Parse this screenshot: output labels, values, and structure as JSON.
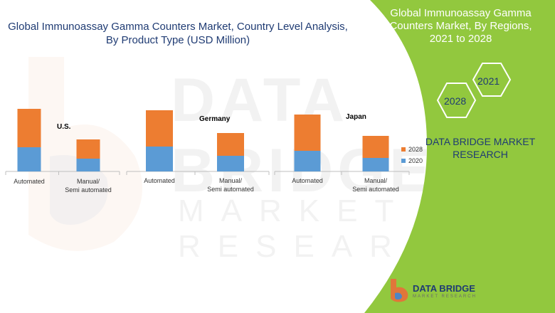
{
  "title": "Global Immunoassay Gamma Counters Market, Country Level Analysis, By Product Type  (USD Million)",
  "side_panel": {
    "title": "Global Immunoassay Gamma Counters Market, By Regions, 2021 to 2028",
    "hex_top": "2021",
    "hex_bottom": "2028",
    "brand": "DATA BRIDGE MARKET RESEARCH"
  },
  "logo": {
    "name": "DATA BRIDGE",
    "sub": "MARKET RESEARCH"
  },
  "watermark": {
    "line1": "DATA BRIDGE",
    "line2": "MARKET RESEARCH"
  },
  "colors": {
    "s2020": "#5b9bd5",
    "s2028": "#ed7d31",
    "panel_green": "#92c83e",
    "title_blue": "#1f3b73"
  },
  "legend": [
    {
      "name": "2028",
      "color": "#ed7d31"
    },
    {
      "name": "2020",
      "color": "#5b9bd5"
    }
  ],
  "chart_data": [
    {
      "type": "bar",
      "stacked": true,
      "label": "U.S.",
      "categories": [
        "Automated",
        "Manual/ Semi automated"
      ],
      "series": [
        {
          "name": "2020",
          "values": [
            34,
            18
          ]
        },
        {
          "name": "2028",
          "values": [
            54,
            27
          ]
        }
      ]
    },
    {
      "type": "bar",
      "stacked": true,
      "label": "Germany",
      "categories": [
        "Automated",
        "Manual/ Semi automated"
      ],
      "series": [
        {
          "name": "2020",
          "values": [
            35,
            22
          ]
        },
        {
          "name": "2028",
          "values": [
            51,
            32
          ]
        }
      ]
    },
    {
      "type": "bar",
      "stacked": true,
      "label": "Japan",
      "categories": [
        "Automated",
        "Manual/ Semi automated"
      ],
      "series": [
        {
          "name": "2020",
          "values": [
            29,
            19
          ]
        },
        {
          "name": "2028",
          "values": [
            51,
            31
          ]
        }
      ]
    }
  ]
}
